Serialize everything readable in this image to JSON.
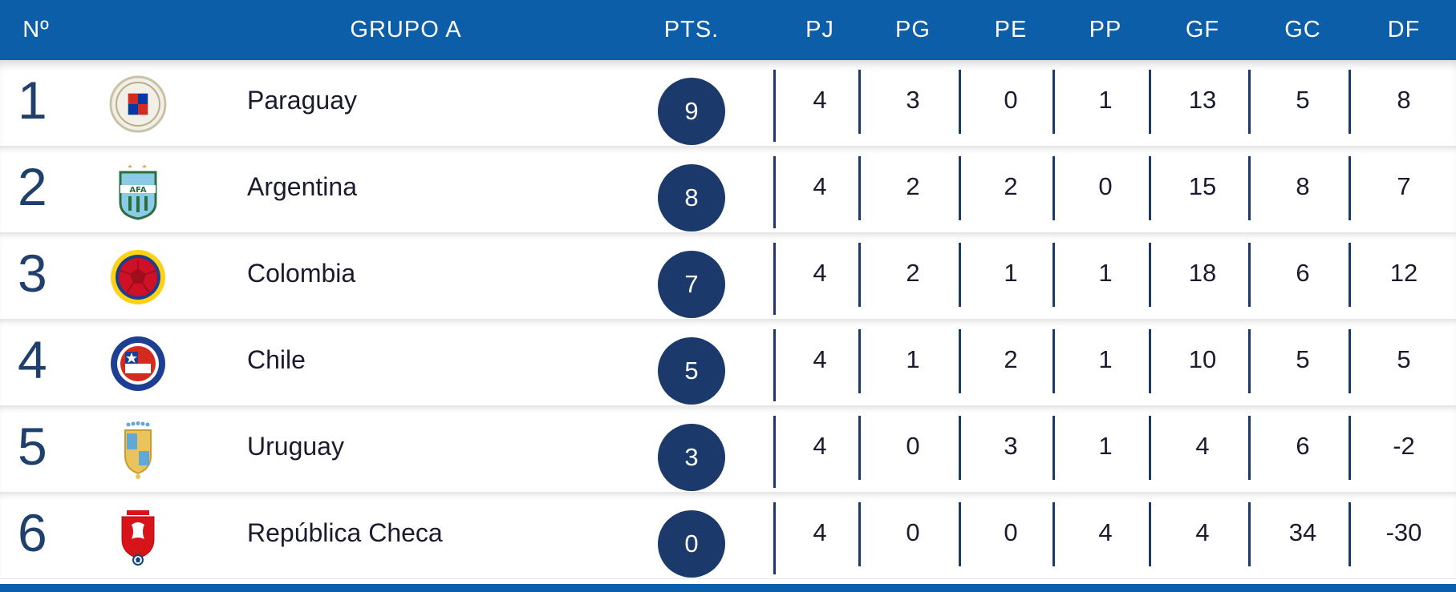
{
  "header": {
    "pos": "Nº",
    "group": "GRUPO A",
    "pts": "PTS.",
    "pj": "PJ",
    "pg": "PG",
    "pe": "PE",
    "pp": "PP",
    "gf": "GF",
    "gc": "GC",
    "df": "DF"
  },
  "colors": {
    "header_bg": "#0d5ea8",
    "points_badge": "#1b3a6b",
    "position_number": "#1f3f6d"
  },
  "teams": [
    {
      "pos": "1",
      "name": "Paraguay",
      "crest": "paraguay-crest-icon",
      "pts": "9",
      "pj": "4",
      "pg": "3",
      "pe": "0",
      "pp": "1",
      "gf": "13",
      "gc": "5",
      "df": "8"
    },
    {
      "pos": "2",
      "name": "Argentina",
      "crest": "argentina-crest-icon",
      "pts": "8",
      "pj": "4",
      "pg": "2",
      "pe": "2",
      "pp": "0",
      "gf": "15",
      "gc": "8",
      "df": "7"
    },
    {
      "pos": "3",
      "name": "Colombia",
      "crest": "colombia-crest-icon",
      "pts": "7",
      "pj": "4",
      "pg": "2",
      "pe": "1",
      "pp": "1",
      "gf": "18",
      "gc": "6",
      "df": "12"
    },
    {
      "pos": "4",
      "name": "Chile",
      "crest": "chile-crest-icon",
      "pts": "5",
      "pj": "4",
      "pg": "1",
      "pe": "2",
      "pp": "1",
      "gf": "10",
      "gc": "5",
      "df": "5"
    },
    {
      "pos": "5",
      "name": "Uruguay",
      "crest": "uruguay-crest-icon",
      "pts": "3",
      "pj": "4",
      "pg": "0",
      "pe": "3",
      "pp": "1",
      "gf": "4",
      "gc": "6",
      "df": "-2"
    },
    {
      "pos": "6",
      "name": "República Checa",
      "crest": "czech-republic-crest-icon",
      "pts": "0",
      "pj": "4",
      "pg": "0",
      "pe": "0",
      "pp": "4",
      "gf": "4",
      "gc": "34",
      "df": "-30"
    }
  ]
}
